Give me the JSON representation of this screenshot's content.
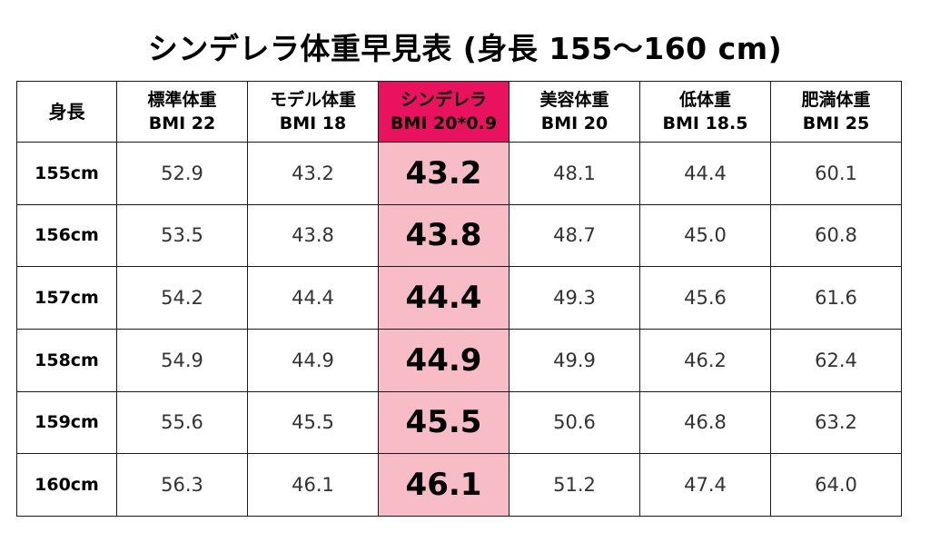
{
  "title": "シンデレラ体重早見表 (身長 155～160 cm)",
  "chart_data": {
    "type": "table",
    "title": "シンデレラ体重早見表 (身長 155～160 cm)",
    "corner_label": "身長",
    "highlight_color": "#e8125e",
    "highlight_cell_color": "#f8bcc6",
    "columns": [
      {
        "line1": "標準体重",
        "line2": "BMI 22"
      },
      {
        "line1": "モデル体重",
        "line2": "BMI 18"
      },
      {
        "line1": "シンデレラ",
        "line2": "BMI 20*0.9",
        "highlight": true
      },
      {
        "line1": "美容体重",
        "line2": "BMI 20"
      },
      {
        "line1": "低体重",
        "line2": "BMI 18.5"
      },
      {
        "line1": "肥満体重",
        "line2": "BMI 25"
      }
    ],
    "rows": [
      {
        "height": "155cm",
        "values": [
          "52.9",
          "43.2",
          "43.2",
          "48.1",
          "44.4",
          "60.1"
        ]
      },
      {
        "height": "156cm",
        "values": [
          "53.5",
          "43.8",
          "43.8",
          "48.7",
          "45.0",
          "60.8"
        ]
      },
      {
        "height": "157cm",
        "values": [
          "54.2",
          "44.4",
          "44.4",
          "49.3",
          "45.6",
          "61.6"
        ]
      },
      {
        "height": "158cm",
        "values": [
          "54.9",
          "44.9",
          "44.9",
          "49.9",
          "46.2",
          "62.4"
        ]
      },
      {
        "height": "159cm",
        "values": [
          "55.6",
          "45.5",
          "45.5",
          "50.6",
          "46.8",
          "63.2"
        ]
      },
      {
        "height": "160cm",
        "values": [
          "56.3",
          "46.1",
          "46.1",
          "51.2",
          "47.4",
          "64.0"
        ]
      }
    ]
  }
}
